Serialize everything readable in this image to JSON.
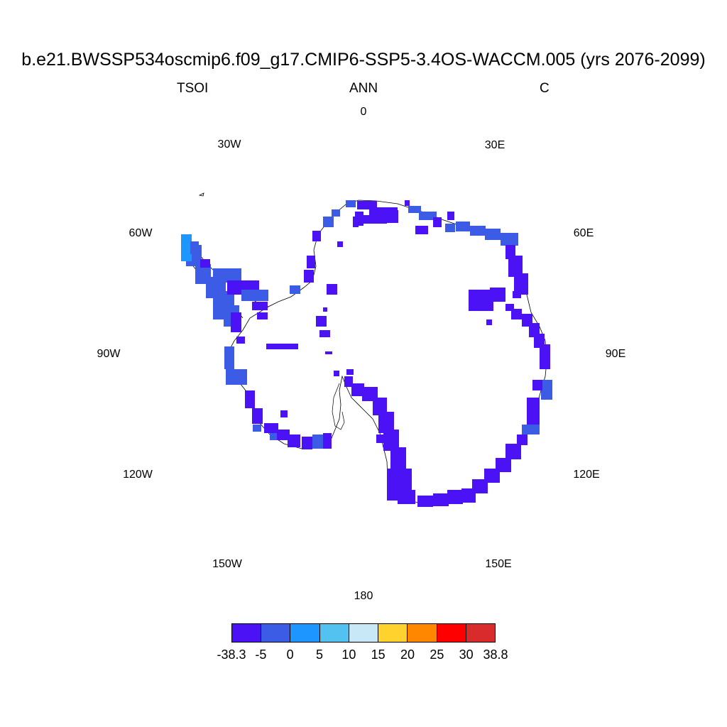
{
  "header": {
    "title": "b.e21.BWSSP534oscmip6.f09_g17.CMIP6-SSP5-3.4OS-WACCM.005 (yrs 2076-2099)",
    "left_label": "TSOI",
    "center_label": "ANN",
    "right_label": "C"
  },
  "projection": "south-polar-stereographic",
  "longitude_labels": {
    "lon_0": "0",
    "lon_30e": "30E",
    "lon_60e": "60E",
    "lon_90e": "90E",
    "lon_120e": "120E",
    "lon_150e": "150E",
    "lon_180": "180",
    "lon_150w": "150W",
    "lon_120w": "120W",
    "lon_90w": "90W",
    "lon_60w": "60W",
    "lon_30w": "30W"
  },
  "colorbar": {
    "colors": [
      "#4a12f5",
      "#3d5ce6",
      "#1e96ff",
      "#54c2f0",
      "#c8e8f8",
      "#ffd22e",
      "#ff8700",
      "#ff0000",
      "#d92b2b"
    ],
    "labels": [
      "-38.3",
      "-5",
      "0",
      "5",
      "10",
      "15",
      "20",
      "25",
      "30",
      "38.8"
    ]
  },
  "colors": {
    "coastline": "#000000",
    "dominant_fill": "#4a12f5",
    "secondary_fill": "#3d5ce6",
    "tertiary_fill": "#1e96ff"
  }
}
